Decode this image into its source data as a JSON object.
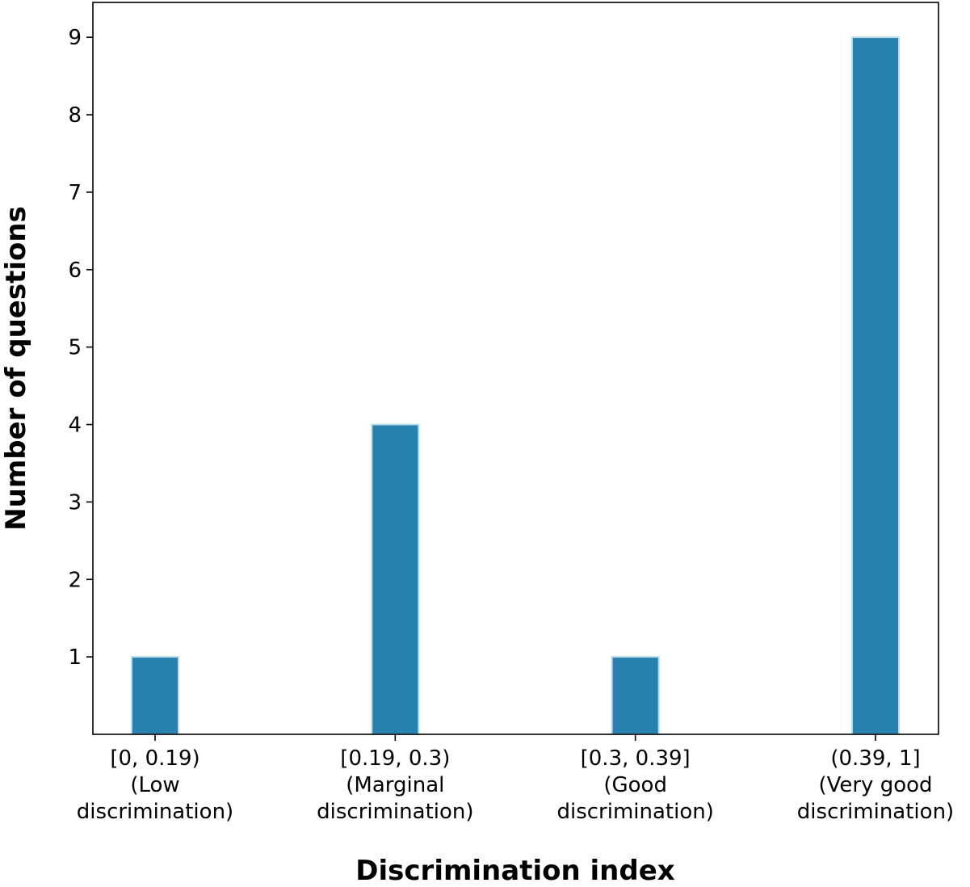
{
  "chart_data": {
    "type": "bar",
    "title": "",
    "xlabel": "Discrimination index",
    "ylabel": "Number of questions",
    "categories": [
      [
        "[0, 0.19)",
        "(Low",
        "discrimination)"
      ],
      [
        "[0.19, 0.3)",
        "(Marginal",
        "discrimination)"
      ],
      [
        "[0.3, 0.39]",
        "(Good",
        "discrimination)"
      ],
      [
        "(0.39, 1]",
        "(Very good",
        "discrimination)"
      ]
    ],
    "values": [
      1,
      4,
      1,
      9
    ],
    "yticks": [
      "1",
      "2",
      "3",
      "4",
      "5",
      "6",
      "7",
      "8",
      "9"
    ],
    "ylim": [
      0,
      9.45
    ],
    "grid": false,
    "bar_color": "#2780ad",
    "bar_edge_color": "#b8dbe8"
  }
}
